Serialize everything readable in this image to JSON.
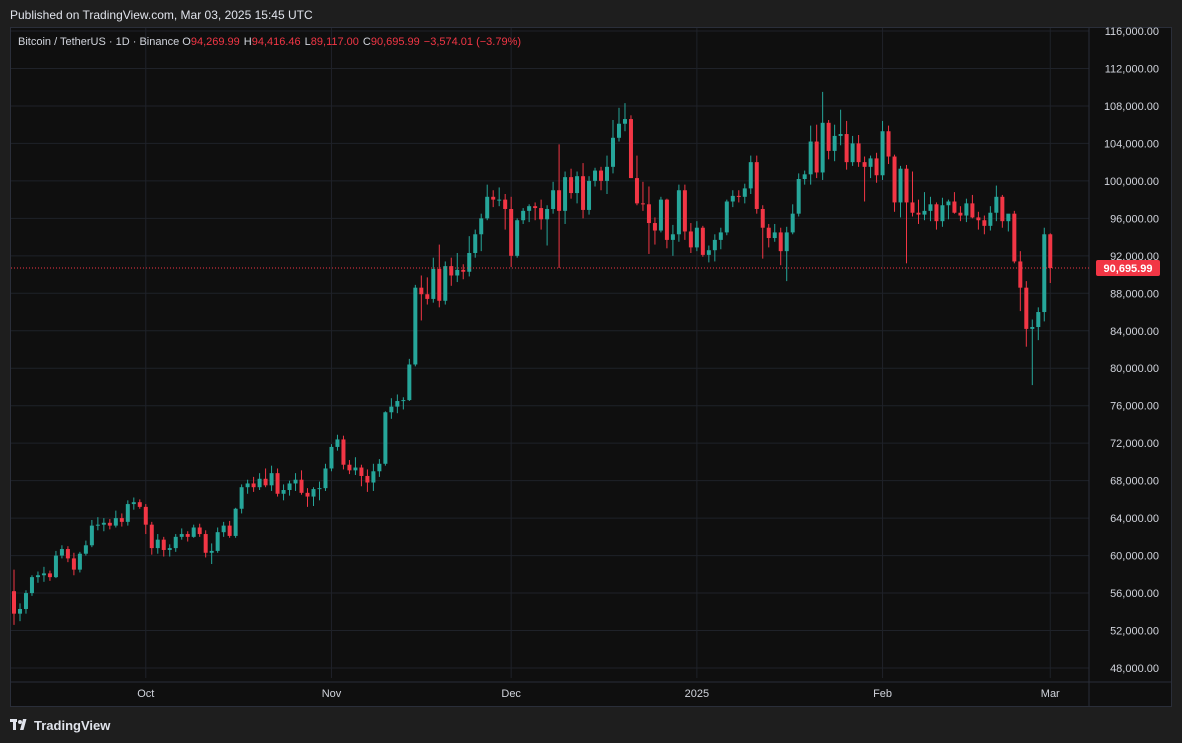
{
  "header": {
    "published": "Published on TradingView.com, Mar 03, 2025 15:45 UTC"
  },
  "legend": {
    "symbol": "Bitcoin / TetherUS · 1D · Binance",
    "open_label": "O",
    "open": "94,269.99",
    "high_label": "H",
    "high": "94,416.46",
    "low_label": "L",
    "low": "89,117.00",
    "close_label": "C",
    "close": "90,695.99",
    "change": "−3,574.01 (−3.79%)"
  },
  "footer": {
    "brand": "TradingView"
  },
  "colors": {
    "up": "#26a69a",
    "down": "#f23645",
    "grid": "#1f2229",
    "axis_text": "#d1d4dc",
    "price_line": "#f23645",
    "background": "#0f0f0f"
  },
  "chart_data": {
    "type": "candlestick",
    "title": "Bitcoin / TetherUS · 1D · Binance",
    "ylim": [
      46000,
      117000
    ],
    "y_ticks": [
      48000,
      52000,
      56000,
      60000,
      64000,
      68000,
      72000,
      76000,
      80000,
      84000,
      88000,
      92000,
      96000,
      100000,
      104000,
      108000,
      112000,
      116000
    ],
    "y_tick_labels": [
      "48,000.00",
      "52,000.00",
      "56,000.00",
      "60,000.00",
      "64,000.00",
      "68,000.00",
      "72,000.00",
      "76,000.00",
      "80,000.00",
      "84,000.00",
      "88,000.00",
      "92,000.00",
      "96,000.00",
      "100,000.00",
      "104,000.00",
      "108,000.00",
      "112,000.00",
      "116,000.00"
    ],
    "x_ticks": [
      {
        "index": 22,
        "label": "Oct"
      },
      {
        "index": 53,
        "label": "Nov"
      },
      {
        "index": 83,
        "label": "Dec"
      },
      {
        "index": 114,
        "label": "2025"
      },
      {
        "index": 145,
        "label": "Feb"
      },
      {
        "index": 173,
        "label": "Mar"
      }
    ],
    "last_price": 90695.99,
    "last_price_label": "90,695.99",
    "grid": true,
    "candles": [
      [
        56200,
        58500,
        52600,
        53800
      ],
      [
        53800,
        54900,
        53000,
        54300
      ],
      [
        54300,
        56300,
        53800,
        56000
      ],
      [
        56000,
        57900,
        55700,
        57700
      ],
      [
        57700,
        58300,
        57100,
        57900
      ],
      [
        57900,
        58800,
        57200,
        58100
      ],
      [
        58100,
        58400,
        57300,
        57700
      ],
      [
        57700,
        60500,
        57600,
        60000
      ],
      [
        60000,
        61100,
        59700,
        60700
      ],
      [
        60700,
        61000,
        59300,
        59700
      ],
      [
        59700,
        60300,
        57900,
        58500
      ],
      [
        58500,
        60400,
        58200,
        60200
      ],
      [
        60200,
        61600,
        60000,
        61100
      ],
      [
        61100,
        63800,
        60900,
        63200
      ],
      [
        63200,
        64100,
        62700,
        63300
      ],
      [
        63300,
        64000,
        62600,
        63500
      ],
      [
        63500,
        63900,
        62800,
        63200
      ],
      [
        63200,
        64800,
        63000,
        64000
      ],
      [
        64000,
        64500,
        63100,
        63600
      ],
      [
        63600,
        65900,
        63200,
        65500
      ],
      [
        65500,
        66200,
        64900,
        65700
      ],
      [
        65700,
        66000,
        65000,
        65200
      ],
      [
        65200,
        65500,
        62300,
        63300
      ],
      [
        63300,
        63600,
        60100,
        60800
      ],
      [
        60800,
        62300,
        60200,
        61700
      ],
      [
        61700,
        62000,
        59900,
        60600
      ],
      [
        60600,
        61200,
        59900,
        60800
      ],
      [
        60800,
        62300,
        60400,
        62000
      ],
      [
        62000,
        62900,
        61700,
        62300
      ],
      [
        62300,
        62600,
        61500,
        62000
      ],
      [
        62000,
        63300,
        61900,
        63000
      ],
      [
        63000,
        63400,
        62000,
        62300
      ],
      [
        62300,
        62700,
        59800,
        60300
      ],
      [
        60300,
        61300,
        59100,
        60500
      ],
      [
        60500,
        63000,
        60300,
        62500
      ],
      [
        62500,
        63600,
        62000,
        63200
      ],
      [
        63200,
        63700,
        61900,
        62100
      ],
      [
        62100,
        65100,
        61900,
        65000
      ],
      [
        65000,
        67600,
        64500,
        67300
      ],
      [
        67300,
        68100,
        66600,
        67700
      ],
      [
        67700,
        68400,
        66800,
        67300
      ],
      [
        67300,
        68800,
        67000,
        68200
      ],
      [
        68200,
        69300,
        67300,
        67500
      ],
      [
        67500,
        69600,
        66900,
        68800
      ],
      [
        68800,
        69300,
        66300,
        66600
      ],
      [
        66600,
        67600,
        65900,
        67000
      ],
      [
        67000,
        68000,
        66400,
        67700
      ],
      [
        67700,
        68800,
        66900,
        68100
      ],
      [
        68100,
        69100,
        66500,
        66700
      ],
      [
        66700,
        67200,
        65200,
        66300
      ],
      [
        66300,
        67300,
        65300,
        67100
      ],
      [
        67100,
        67900,
        65900,
        67200
      ],
      [
        67200,
        69800,
        66900,
        69300
      ],
      [
        69300,
        71900,
        69000,
        71600
      ],
      [
        71600,
        72900,
        71200,
        72400
      ],
      [
        72400,
        72800,
        69200,
        69700
      ],
      [
        69700,
        70200,
        68700,
        69100
      ],
      [
        69100,
        70500,
        68600,
        69400
      ],
      [
        69400,
        69700,
        67400,
        68500
      ],
      [
        68500,
        69200,
        66800,
        67800
      ],
      [
        67800,
        69800,
        66900,
        69000
      ],
      [
        69000,
        70300,
        68400,
        69800
      ],
      [
        69800,
        75400,
        69600,
        75300
      ],
      [
        75300,
        76800,
        74600,
        75900
      ],
      [
        75900,
        77200,
        75200,
        76500
      ],
      [
        76500,
        76900,
        75600,
        76600
      ],
      [
        76600,
        81000,
        76500,
        80400
      ],
      [
        80400,
        88900,
        80200,
        88600
      ],
      [
        88600,
        89900,
        85100,
        87900
      ],
      [
        87900,
        89700,
        86800,
        87400
      ],
      [
        87400,
        91800,
        87000,
        90600
      ],
      [
        90600,
        93200,
        86500,
        87200
      ],
      [
        87200,
        91400,
        86800,
        90900
      ],
      [
        90900,
        91800,
        88800,
        89900
      ],
      [
        89900,
        92300,
        89200,
        90500
      ],
      [
        90500,
        91100,
        89500,
        90300
      ],
      [
        90300,
        94100,
        89800,
        92300
      ],
      [
        92300,
        94800,
        91800,
        94300
      ],
      [
        94300,
        96500,
        92500,
        96000
      ],
      [
        96000,
        99600,
        95800,
        98300
      ],
      [
        98300,
        99000,
        97200,
        98000
      ],
      [
        98000,
        99300,
        97300,
        98000
      ],
      [
        98000,
        98600,
        94800,
        97000
      ],
      [
        97000,
        98300,
        90800,
        92000
      ],
      [
        92000,
        96000,
        91800,
        95800
      ],
      [
        95800,
        97100,
        95400,
        96800
      ],
      [
        96800,
        97500,
        95600,
        97300
      ],
      [
        97300,
        97700,
        95800,
        97100
      ],
      [
        97100,
        98000,
        94800,
        95900
      ],
      [
        95900,
        97400,
        93100,
        97000
      ],
      [
        97000,
        99900,
        96500,
        99000
      ],
      [
        99000,
        103900,
        90700,
        96800
      ],
      [
        96800,
        101000,
        95400,
        100400
      ],
      [
        100400,
        101300,
        98100,
        98700
      ],
      [
        98700,
        101000,
        97600,
        100500
      ],
      [
        100500,
        101900,
        96000,
        96900
      ],
      [
        96900,
        100500,
        96400,
        100000
      ],
      [
        100000,
        101400,
        99400,
        101100
      ],
      [
        101100,
        101500,
        99000,
        100000
      ],
      [
        100000,
        102700,
        98600,
        101500
      ],
      [
        101500,
        106500,
        100800,
        104600
      ],
      [
        104600,
        107800,
        104200,
        106100
      ],
      [
        106100,
        108300,
        105300,
        106600
      ],
      [
        106600,
        107000,
        100300,
        100300
      ],
      [
        100300,
        102700,
        97400,
        97600
      ],
      [
        97600,
        99900,
        96800,
        97500
      ],
      [
        97500,
        99400,
        92200,
        95500
      ],
      [
        95500,
        96100,
        93200,
        94700
      ],
      [
        94700,
        98300,
        94500,
        98000
      ],
      [
        98000,
        98100,
        92800,
        93700
      ],
      [
        93700,
        95300,
        92000,
        94300
      ],
      [
        94300,
        99600,
        93500,
        99000
      ],
      [
        99000,
        99600,
        93700,
        94600
      ],
      [
        94600,
        95500,
        92300,
        92900
      ],
      [
        92900,
        95700,
        92500,
        95000
      ],
      [
        95000,
        95200,
        91900,
        92100
      ],
      [
        92100,
        93100,
        91300,
        92600
      ],
      [
        92600,
        94300,
        91400,
        93700
      ],
      [
        93700,
        95000,
        92700,
        94500
      ],
      [
        94500,
        98000,
        94200,
        97800
      ],
      [
        97800,
        99000,
        97200,
        98400
      ],
      [
        98400,
        99000,
        97700,
        98300
      ],
      [
        98300,
        99700,
        97600,
        99200
      ],
      [
        99200,
        102700,
        98600,
        102000
      ],
      [
        102000,
        102700,
        96500,
        97000
      ],
      [
        97000,
        97400,
        91700,
        95000
      ],
      [
        95000,
        95400,
        92900,
        93900
      ],
      [
        93900,
        95400,
        93500,
        94500
      ],
      [
        94500,
        95000,
        91000,
        92500
      ],
      [
        92500,
        95100,
        89300,
        94500
      ],
      [
        94500,
        97500,
        94300,
        96500
      ],
      [
        96500,
        100800,
        96200,
        100200
      ],
      [
        100200,
        101100,
        99600,
        100700
      ],
      [
        100700,
        105900,
        99600,
        104200
      ],
      [
        104200,
        106000,
        100300,
        100900
      ],
      [
        100900,
        109500,
        100100,
        106200
      ],
      [
        106200,
        106500,
        102300,
        103200
      ],
      [
        103200,
        106000,
        102100,
        104800
      ],
      [
        104800,
        107600,
        103800,
        105000
      ],
      [
        105000,
        106400,
        101200,
        102000
      ],
      [
        102000,
        104800,
        101600,
        104000
      ],
      [
        104000,
        104900,
        101500,
        102000
      ],
      [
        102000,
        102600,
        97800,
        101500
      ],
      [
        101500,
        102700,
        100300,
        102400
      ],
      [
        102400,
        103000,
        99800,
        100600
      ],
      [
        100600,
        106400,
        100100,
        105300
      ],
      [
        105300,
        105900,
        101800,
        102600
      ],
      [
        102600,
        102800,
        96700,
        97700
      ],
      [
        97700,
        101600,
        96100,
        101300
      ],
      [
        101300,
        101700,
        91200,
        97700
      ],
      [
        97700,
        101000,
        96200,
        96600
      ],
      [
        96600,
        98000,
        95400,
        96400
      ],
      [
        96400,
        98800,
        95800,
        96800
      ],
      [
        96800,
        98300,
        95700,
        97500
      ],
      [
        97500,
        97700,
        94800,
        95700
      ],
      [
        95700,
        98200,
        95100,
        97400
      ],
      [
        97400,
        98000,
        95900,
        97800
      ],
      [
        97800,
        98800,
        96500,
        96600
      ],
      [
        96600,
        97300,
        95700,
        96300
      ],
      [
        96300,
        98100,
        95600,
        97600
      ],
      [
        97600,
        98500,
        96000,
        96100
      ],
      [
        96100,
        96700,
        94800,
        95800
      ],
      [
        95800,
        96300,
        94300,
        95200
      ],
      [
        95200,
        97300,
        94700,
        96600
      ],
      [
        96600,
        99500,
        95700,
        98300
      ],
      [
        98300,
        98500,
        95000,
        95700
      ],
      [
        95700,
        96300,
        94600,
        96500
      ],
      [
        96500,
        96800,
        91200,
        91400
      ],
      [
        91400,
        92500,
        86100,
        88600
      ],
      [
        88600,
        89300,
        82300,
        84200
      ],
      [
        84200,
        85200,
        78200,
        84400
      ],
      [
        84400,
        86500,
        83000,
        86000
      ],
      [
        86000,
        95000,
        85000,
        94300
      ],
      [
        94300,
        94400,
        89100,
        90700
      ]
    ]
  }
}
